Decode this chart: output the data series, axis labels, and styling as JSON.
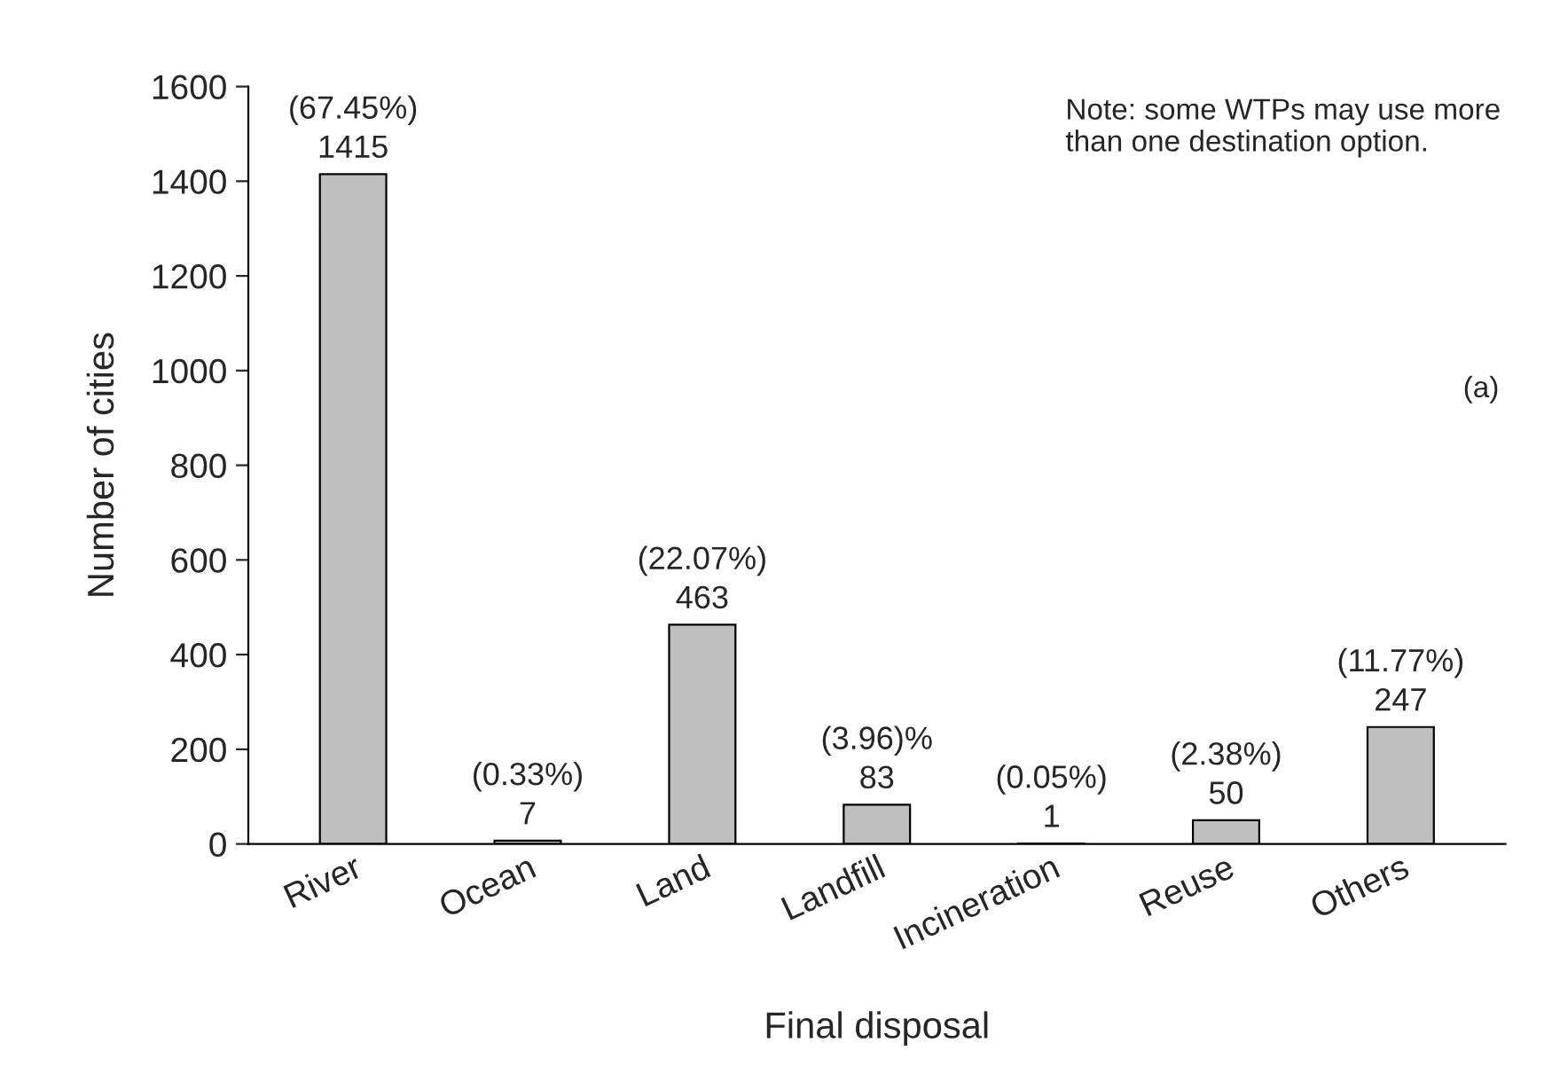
{
  "chart_data": {
    "type": "bar",
    "xlabel": "Final disposal",
    "ylabel": "Number of cities",
    "categories": [
      "River",
      "Ocean",
      "Land",
      "Landfill",
      "Incineration",
      "Reuse",
      "Others"
    ],
    "values": [
      1415,
      7,
      463,
      83,
      1,
      50,
      247
    ],
    "value_labels": [
      "(67.45%)\n1415",
      "(0.33%)\n7",
      "(22.07%)\n463",
      "(3.96)%\n83",
      "(0.05%)\n1",
      "(2.38%)\n50",
      "(11.77%)\n247"
    ],
    "color": "#bfbfbf",
    "ylim": [
      0,
      1600
    ],
    "yticks": [
      0,
      200,
      400,
      600,
      800,
      1000,
      1200,
      1400,
      1600
    ],
    "grid": false,
    "annotations": [
      "Note: some WTPs may use more\nthan one destination option.",
      "(a)"
    ]
  }
}
